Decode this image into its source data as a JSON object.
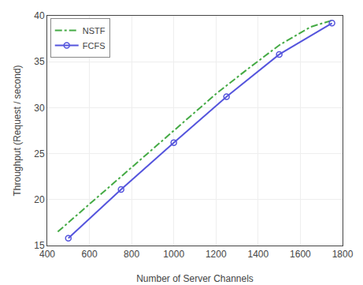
{
  "chart_data": {
    "type": "line",
    "xlabel": "Number of Server Channels",
    "ylabel": "Throughput (Request / second)",
    "series": [
      {
        "name": "NSTF",
        "color": "#44aa44",
        "line_style": "dashdot",
        "marker": "none",
        "x": [
          450,
          600,
          750,
          900,
          1050,
          1200,
          1350,
          1500,
          1650,
          1750
        ],
        "values": [
          16.5,
          19.5,
          22.5,
          25.5,
          28.5,
          31.5,
          34.2,
          36.8,
          38.8,
          39.5
        ]
      },
      {
        "name": "FCFS",
        "color": "#5555dd",
        "line_style": "solid",
        "marker": "circle",
        "x": [
          500,
          750,
          1000,
          1250,
          1500,
          1750
        ],
        "values": [
          15.8,
          21.1,
          26.2,
          31.2,
          35.8,
          39.2
        ]
      }
    ],
    "xlim": [
      400,
      1800
    ],
    "ylim": [
      15,
      40
    ],
    "xticks": [
      400,
      600,
      800,
      1000,
      1200,
      1400,
      1600,
      1800
    ],
    "yticks": [
      15,
      20,
      25,
      30,
      35,
      40
    ],
    "grid": true,
    "legend": "upper left"
  }
}
